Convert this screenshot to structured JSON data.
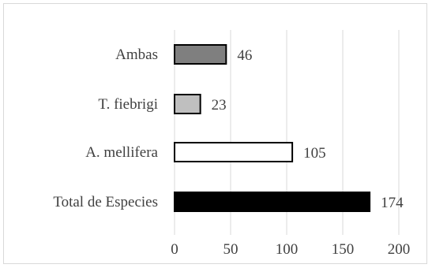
{
  "chart_data": {
    "type": "bar",
    "orientation": "horizontal",
    "categories": [
      "Ambas",
      "T. fiebrigi",
      "A. mellifera",
      "Total de Especies"
    ],
    "values": [
      46,
      23,
      105,
      174
    ],
    "data_labels": [
      "46",
      "23",
      "105",
      "174"
    ],
    "bar_colors": [
      "#7f7f7f",
      "#bfbfbf",
      "#ffffff",
      "#000000"
    ],
    "bar_stroke": "#000000",
    "xlim": [
      0,
      200
    ],
    "x_ticks": [
      0,
      50,
      100,
      150,
      200
    ],
    "x_tick_labels": [
      "0",
      "50",
      "100",
      "150",
      "200"
    ],
    "grid": "vertical",
    "grid_color": "#d9d9d9",
    "title": "",
    "xlabel": "",
    "ylabel": "",
    "legend": "none"
  }
}
